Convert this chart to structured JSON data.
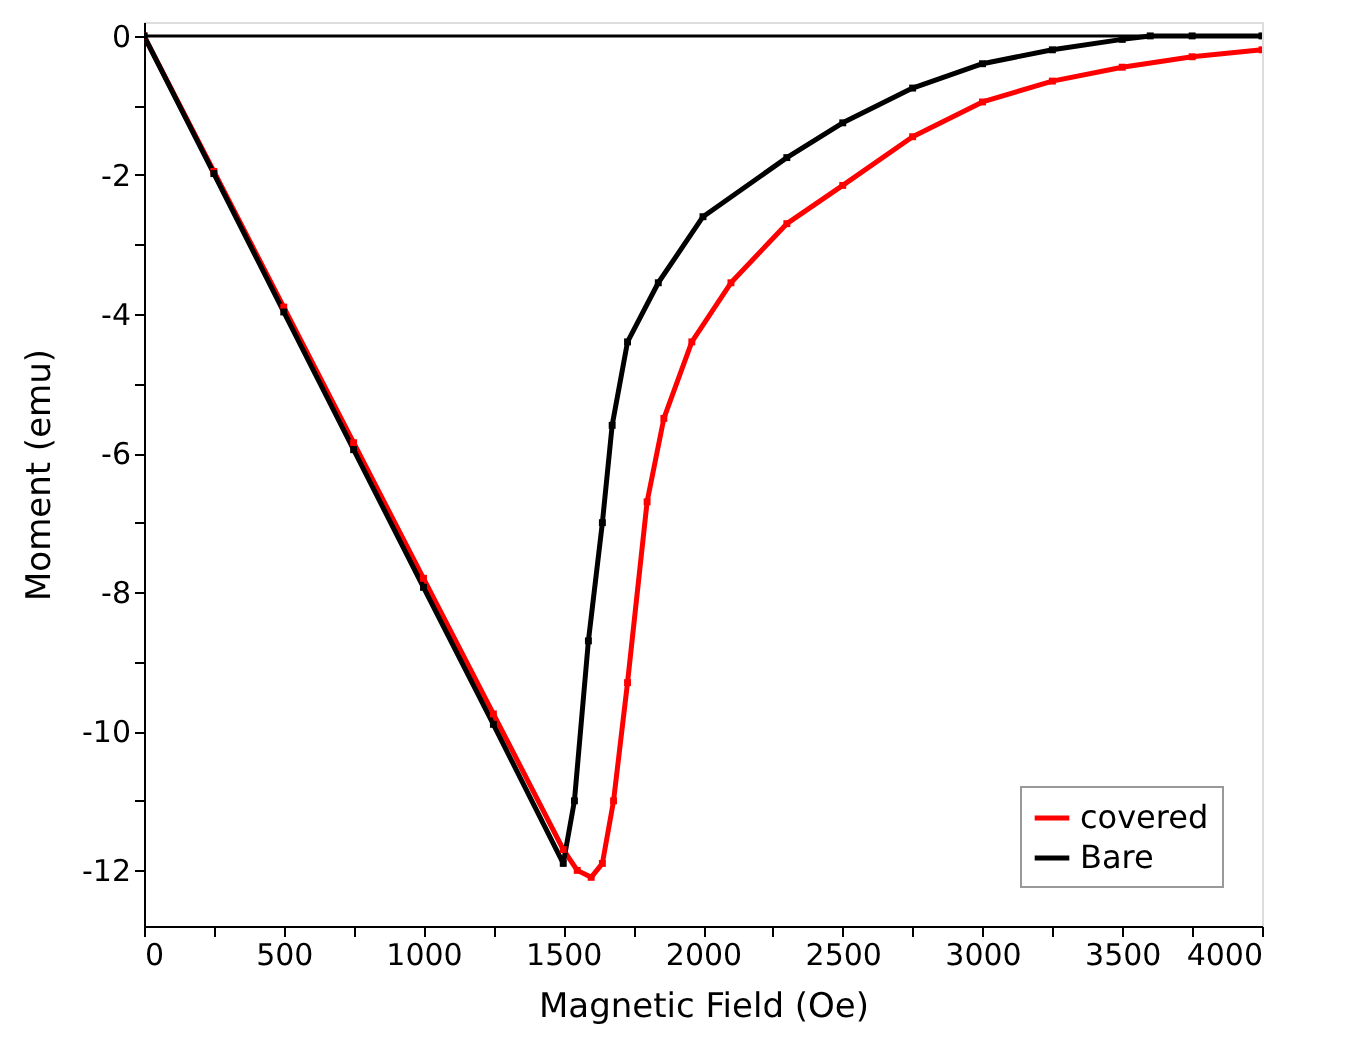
{
  "chart_data": {
    "type": "line",
    "xlabel": "Magnetic Field (Oe)",
    "ylabel": "Moment (emu)",
    "xlim": [
      0,
      4000
    ],
    "ylim": [
      -12.8,
      0.2
    ],
    "xticks": [
      0,
      {
        "value": 250,
        "label": null
      },
      500,
      {
        "value": 750,
        "label": null
      },
      1000,
      {
        "value": 1250,
        "label": null
      },
      1500,
      {
        "value": 1750,
        "label": null
      },
      2000,
      {
        "value": 2250,
        "label": null
      },
      2500,
      {
        "value": 2750,
        "label": null
      },
      3000,
      {
        "value": 3250,
        "label": null
      },
      3500,
      {
        "value": 3750,
        "label": null
      },
      4000
    ],
    "yticks": [
      0,
      {
        "value": -1,
        "label": null
      },
      -2,
      {
        "value": -3,
        "label": null
      },
      -4,
      {
        "value": -5,
        "label": null
      },
      -6,
      {
        "value": -7,
        "label": null
      },
      -8,
      {
        "value": -9,
        "label": null
      },
      -10,
      {
        "value": -11,
        "label": null
      },
      -12
    ],
    "marker": "square",
    "line_style": "solid",
    "grid": false,
    "legend": "bottom right",
    "ref_lines": [
      {
        "axis": "y",
        "value": 0,
        "color": "#000000"
      }
    ],
    "series": [
      {
        "name": "covered",
        "color": "#ff0000",
        "x": [
          0,
          250,
          500,
          750,
          1000,
          1250,
          1500,
          1550,
          1600,
          1640,
          1680,
          1730,
          1800,
          1860,
          1960,
          2100,
          2300,
          2500,
          2750,
          3000,
          3250,
          3500,
          3750,
          4000
        ],
        "values": [
          0,
          -1.95,
          -3.9,
          -5.85,
          -7.8,
          -9.75,
          -11.7,
          -12.0,
          -12.1,
          -11.9,
          -11.0,
          -9.3,
          -6.7,
          -5.5,
          -4.4,
          -3.55,
          -2.7,
          -2.15,
          -1.45,
          -0.95,
          -0.65,
          -0.45,
          -0.3,
          -0.2
        ]
      },
      {
        "name": "Bare",
        "color": "#000000",
        "x": [
          0,
          250,
          500,
          750,
          1000,
          1250,
          1500,
          1540,
          1590,
          1640,
          1675,
          1730,
          1840,
          2000,
          2300,
          2500,
          2750,
          3000,
          3250,
          3500,
          3600,
          3750,
          4000
        ],
        "values": [
          0,
          -1.98,
          -3.97,
          -5.95,
          -7.93,
          -9.9,
          -11.9,
          -11.0,
          -8.7,
          -7.0,
          -5.6,
          -4.4,
          -3.55,
          -2.6,
          -1.75,
          -1.25,
          -0.75,
          -0.4,
          -0.2,
          -0.05,
          0,
          0,
          0
        ]
      }
    ]
  }
}
